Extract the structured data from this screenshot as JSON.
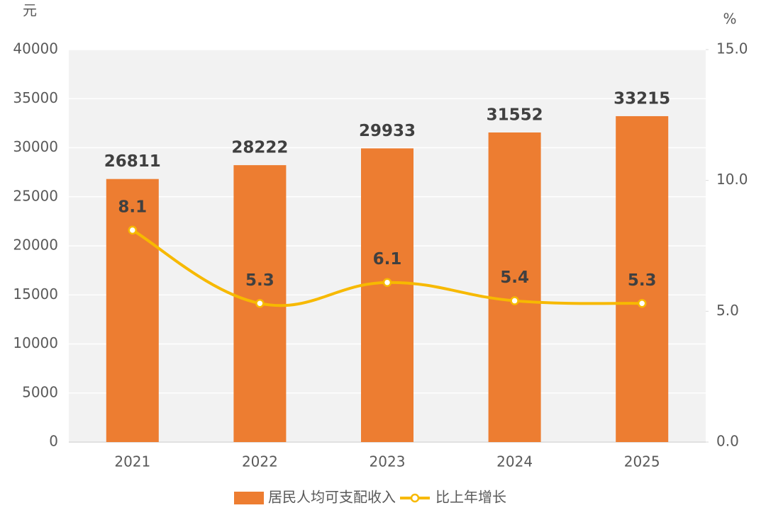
{
  "chart_data": {
    "type": "bar_line",
    "y_axis_label": "元",
    "y2_axis_label": "%",
    "categories": [
      "2021",
      "2022",
      "2023",
      "2024",
      "2025"
    ],
    "series": [
      {
        "name": "居民人均可支配收入",
        "type": "bar",
        "color": "#ed7d31",
        "values": [
          26811,
          28222,
          29933,
          31552,
          33215
        ]
      },
      {
        "name": "比上年增长",
        "type": "line",
        "axis": "y2",
        "color": "#f7b900",
        "values": [
          8.1,
          5.3,
          6.1,
          5.4,
          5.3
        ]
      }
    ],
    "ylim": [
      0,
      40000
    ],
    "yticks": [
      0,
      5000,
      10000,
      15000,
      20000,
      25000,
      30000,
      35000,
      40000
    ],
    "y2lim": [
      0,
      15
    ],
    "y2ticks": [
      {
        "value": 0,
        "label": "0.0"
      },
      {
        "value": 5,
        "label": "5.0"
      },
      {
        "value": 10,
        "label": "10.0"
      },
      {
        "value": 15,
        "label": "15.0"
      }
    ],
    "grid": true,
    "legend": "bottom"
  }
}
